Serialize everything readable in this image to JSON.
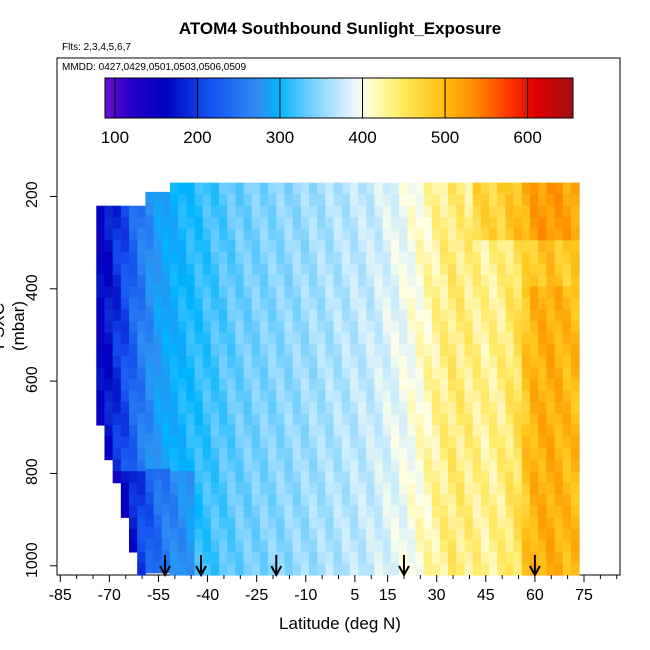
{
  "chart_data": {
    "type": "heatmap",
    "title": "ATOM4 Southbound Sunlight_Exposure",
    "subtitle_flights": "Flts: 2,3,4,5,6,7",
    "subtitle_dates": "MMDD: 0427,0429,0501,0503,0506,0509",
    "xlabel": "Latitude (deg N)",
    "ylabel": "PSXC (mbar)",
    "x_ticks": [
      -85,
      -70,
      -55,
      -40,
      -25,
      -10,
      5,
      15,
      30,
      45,
      60,
      75
    ],
    "x_tick_labels": [
      "-85",
      "-70",
      "-55",
      "-40",
      "-25",
      "-10",
      "5",
      "15",
      "30",
      "45",
      "60",
      "75"
    ],
    "xlim": [
      -86,
      86
    ],
    "y_ticks": [
      200,
      400,
      600,
      800,
      1000
    ],
    "y_tick_labels": [
      "200",
      "400",
      "600",
      "800",
      "1000"
    ],
    "ylim": [
      1020,
      -100
    ],
    "colorbar": {
      "range": [
        88,
        655
      ],
      "ticks": [
        100,
        200,
        300,
        400,
        500,
        600
      ],
      "tick_labels": [
        "100",
        "200",
        "300",
        "400",
        "500",
        "600"
      ]
    },
    "profile_arrows_lat": [
      -53,
      -42,
      -19,
      20,
      60
    ],
    "field": {
      "lat_range": [
        -74,
        73
      ],
      "pressure_range": [
        170,
        1010
      ],
      "columns": [
        {
          "lat": -74,
          "top": 220,
          "bottom": 1000,
          "value": 150
        },
        {
          "lat": -70,
          "top": 220,
          "bottom": 1000,
          "value": 170
        },
        {
          "lat": -65,
          "top": 220,
          "bottom": 1000,
          "value": 200
        },
        {
          "lat": -60,
          "top": 210,
          "bottom": 1000,
          "value": 235
        },
        {
          "lat": -55,
          "top": 190,
          "bottom": 1000,
          "value": 265
        },
        {
          "lat": -50,
          "top": 170,
          "bottom": 1000,
          "value": 285
        },
        {
          "lat": -45,
          "top": 170,
          "bottom": 1000,
          "value": 300
        },
        {
          "lat": -40,
          "top": 170,
          "bottom": 1000,
          "value": 310
        },
        {
          "lat": -35,
          "top": 170,
          "bottom": 1000,
          "value": 320
        },
        {
          "lat": -30,
          "top": 170,
          "bottom": 1000,
          "value": 330
        },
        {
          "lat": -25,
          "top": 170,
          "bottom": 1000,
          "value": 335
        },
        {
          "lat": -20,
          "top": 170,
          "bottom": 1000,
          "value": 340
        },
        {
          "lat": -15,
          "top": 170,
          "bottom": 1000,
          "value": 345
        },
        {
          "lat": -10,
          "top": 170,
          "bottom": 1000,
          "value": 350
        },
        {
          "lat": -5,
          "top": 170,
          "bottom": 1000,
          "value": 355
        },
        {
          "lat": 0,
          "top": 170,
          "bottom": 1000,
          "value": 360
        },
        {
          "lat": 5,
          "top": 170,
          "bottom": 1000,
          "value": 365
        },
        {
          "lat": 10,
          "top": 170,
          "bottom": 1000,
          "value": 370
        },
        {
          "lat": 15,
          "top": 170,
          "bottom": 1000,
          "value": 380
        },
        {
          "lat": 20,
          "top": 170,
          "bottom": 1000,
          "value": 390
        },
        {
          "lat": 25,
          "top": 170,
          "bottom": 1000,
          "value": 405
        },
        {
          "lat": 30,
          "top": 170,
          "bottom": 1000,
          "value": 420
        },
        {
          "lat": 35,
          "top": 170,
          "bottom": 1000,
          "value": 430
        },
        {
          "lat": 40,
          "top": 170,
          "bottom": 1000,
          "value": 425
        },
        {
          "lat": 45,
          "top": 170,
          "bottom": 1000,
          "value": 420
        },
        {
          "lat": 50,
          "top": 170,
          "bottom": 1000,
          "value": 425
        },
        {
          "lat": 55,
          "top": 170,
          "bottom": 1000,
          "value": 440
        },
        {
          "lat": 60,
          "top": 170,
          "bottom": 1000,
          "value": 465
        },
        {
          "lat": 65,
          "top": 170,
          "bottom": 1000,
          "value": 470
        },
        {
          "lat": 70,
          "top": 170,
          "bottom": 1000,
          "value": 460
        }
      ]
    }
  }
}
